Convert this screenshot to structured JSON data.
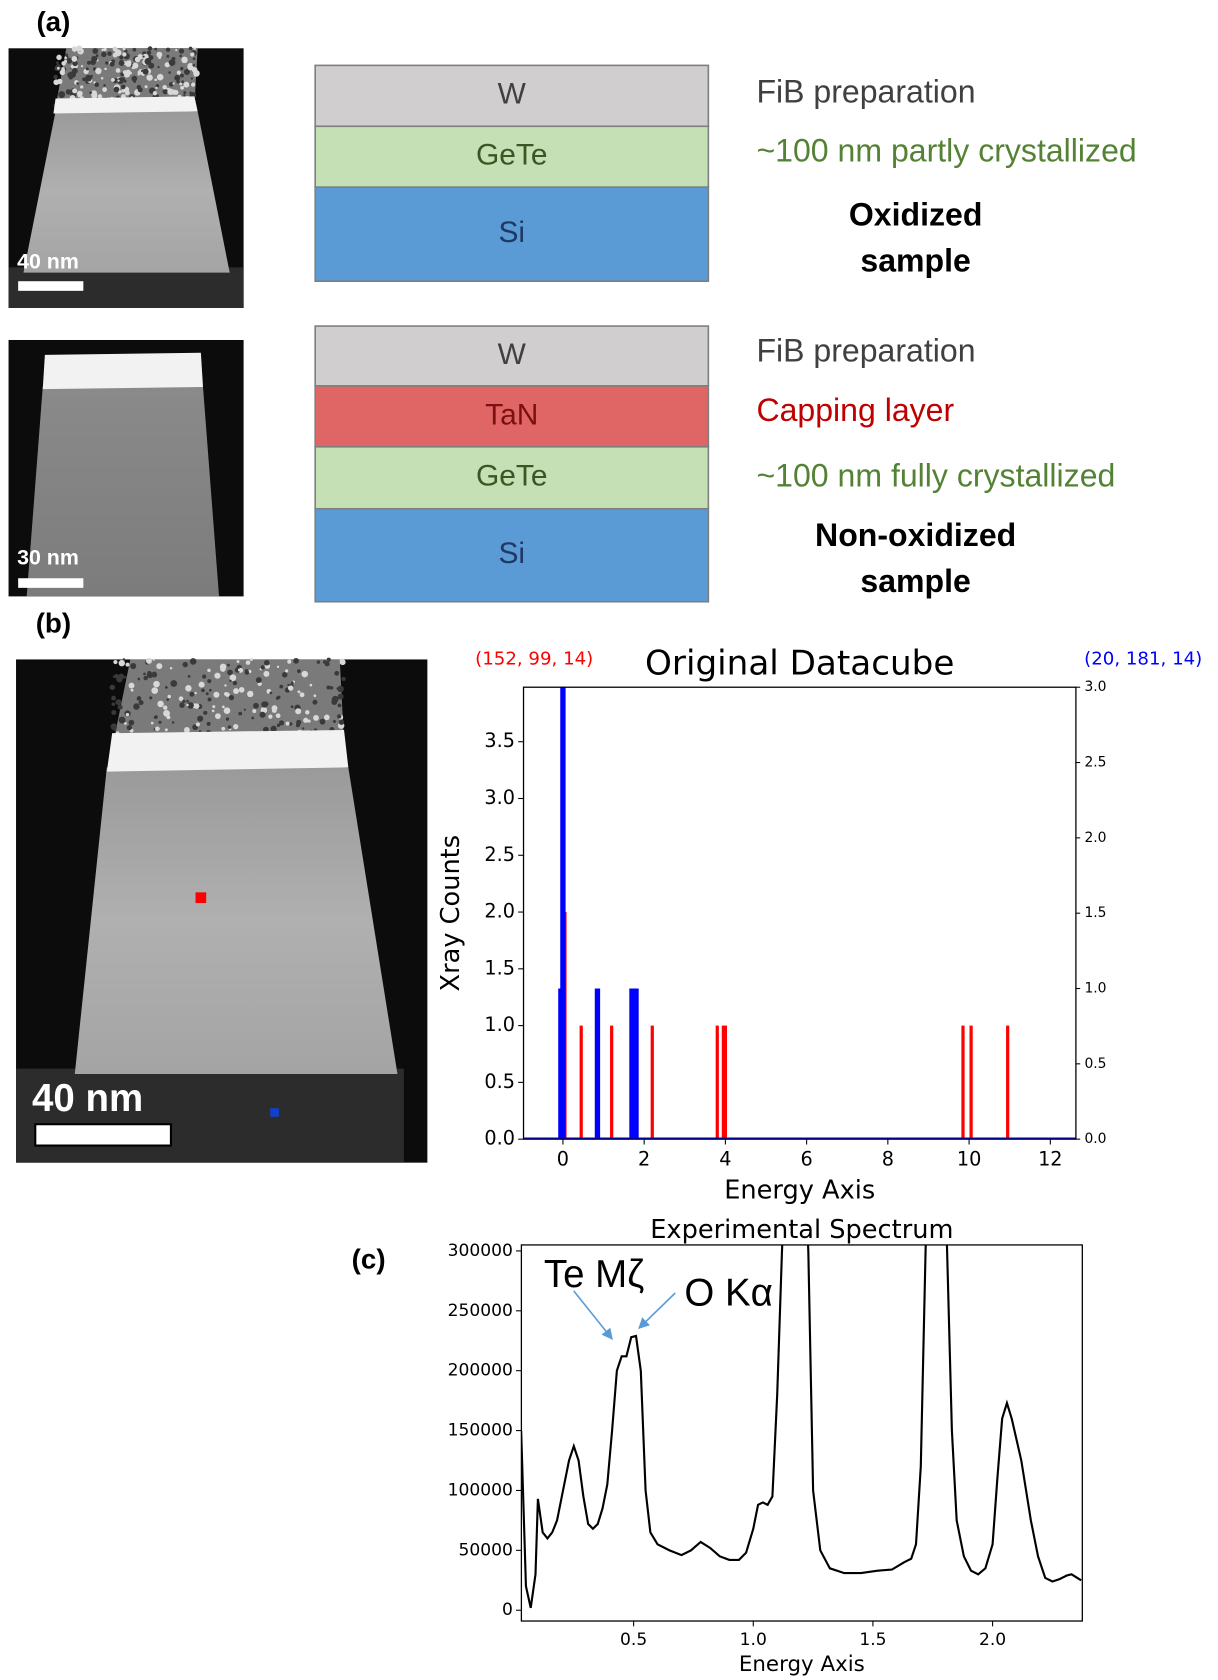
{
  "figure": {
    "panel_labels": [
      "(a)",
      "(b)",
      "(c)"
    ],
    "stacks": [
      {
        "layers": [
          "W",
          "GeTe",
          "Si"
        ],
        "notes": [
          "FiB preparation",
          "~100 nm partly crystallized"
        ],
        "sample": [
          "Oxidized",
          "sample"
        ],
        "scale_bar": "40 nm"
      },
      {
        "layers": [
          "W",
          "TaN",
          "GeTe",
          "Si"
        ],
        "notes": [
          "FiB preparation",
          "Capping layer",
          "~100 nm fully crystallized"
        ],
        "sample": [
          "Non-oxidized",
          "sample"
        ],
        "scale_bar": "30 nm"
      }
    ],
    "image_scale_bar": "40 nm"
  },
  "chart_data": [
    {
      "type": "bar",
      "title": "Original Datacube",
      "xlabel": "Energy Axis",
      "ylabel": "Xray Counts",
      "x": [
        -0.05,
        0,
        0.05,
        0.45,
        0.85,
        1.2,
        1.7,
        1.75,
        1.8,
        2.2,
        3.8,
        3.95,
        4.0,
        9.85,
        10.05,
        10.95
      ],
      "series": [
        {
          "name": "(152, 99, 14)",
          "color": "#ff0000",
          "values": [
            null,
            null,
            2,
            1,
            1,
            1,
            null,
            null,
            null,
            1,
            1,
            1,
            1,
            1,
            1,
            1
          ]
        },
        {
          "name": "(20, 181, 14)",
          "color": "#0000ff",
          "axis": "y2",
          "values": [
            1,
            3,
            null,
            null,
            1,
            null,
            1,
            1,
            1,
            null,
            null,
            null,
            null,
            null,
            null,
            null
          ]
        }
      ],
      "xlim": [
        -0.97,
        12.63
      ],
      "xticks": [
        0,
        2,
        4,
        6,
        8,
        10,
        12
      ],
      "ylim": [
        0,
        3.98
      ],
      "yticks": [
        {
          "value": 0,
          "label": "0.0"
        },
        0.5,
        {
          "value": 1,
          "label": "1.0"
        },
        1.5,
        {
          "value": 2,
          "label": "2.0"
        },
        2.5,
        {
          "value": 3,
          "label": "3.0"
        },
        3.5
      ],
      "y2lim": [
        0,
        3
      ],
      "y2ticks": [
        {
          "value": 0,
          "label": "0.0"
        },
        0.5,
        {
          "value": 1,
          "label": "1.0"
        },
        1.5,
        {
          "value": 2,
          "label": "2.0"
        },
        2.5,
        {
          "value": 3,
          "label": "3.0"
        }
      ]
    },
    {
      "type": "line",
      "title": "Experimental Spectrum",
      "xlabel": "Energy Axis",
      "annotations": [
        "Te Mζ",
        "O Kα"
      ],
      "x": [
        0.03,
        0.05,
        0.07,
        0.09,
        0.1,
        0.12,
        0.14,
        0.16,
        0.18,
        0.2,
        0.23,
        0.25,
        0.27,
        0.29,
        0.31,
        0.33,
        0.35,
        0.37,
        0.39,
        0.41,
        0.43,
        0.45,
        0.47,
        0.49,
        0.51,
        0.53,
        0.55,
        0.57,
        0.6,
        0.65,
        0.7,
        0.74,
        0.78,
        0.82,
        0.86,
        0.9,
        0.94,
        0.97,
        1.0,
        1.02,
        1.04,
        1.06,
        1.08,
        1.1,
        1.12,
        1.15,
        1.2,
        1.23,
        1.25,
        1.28,
        1.32,
        1.38,
        1.45,
        1.52,
        1.58,
        1.63,
        1.66,
        1.68,
        1.7,
        1.72,
        1.74,
        1.79,
        1.81,
        1.83,
        1.85,
        1.88,
        1.91,
        1.94,
        1.97,
        2.0,
        2.02,
        2.04,
        2.06,
        2.08,
        2.12,
        2.16,
        2.19,
        2.22,
        2.25,
        2.28,
        2.31,
        2.33,
        2.37
      ],
      "series": [
        {
          "color": "#000000",
          "values": [
            150000,
            20000,
            2000,
            30000,
            93000,
            65000,
            60000,
            65000,
            75000,
            95000,
            125000,
            137000,
            125000,
            95000,
            72000,
            68000,
            72000,
            85000,
            105000,
            150000,
            200000,
            212000,
            212000,
            228000,
            229000,
            200000,
            100000,
            65000,
            55000,
            50000,
            46000,
            50000,
            57000,
            52000,
            45000,
            42000,
            42000,
            48000,
            68000,
            88000,
            90000,
            88000,
            95000,
            180000,
            300000,
            450000,
            450000,
            300000,
            100000,
            50000,
            35000,
            31000,
            31000,
            33000,
            34000,
            40000,
            43000,
            55000,
            120000,
            300000,
            450000,
            450000,
            300000,
            150000,
            75000,
            45000,
            33000,
            30000,
            35000,
            55000,
            110000,
            160000,
            173000,
            160000,
            125000,
            75000,
            45000,
            27000,
            24000,
            26000,
            29000,
            30000,
            25000
          ]
        }
      ],
      "xlim": [
        0.031,
        2.375
      ],
      "xticks": [
        0.5,
        {
          "value": 1,
          "label": "1.0"
        },
        1.5,
        {
          "value": 2,
          "label": "2.0"
        }
      ],
      "ylim": [
        -9000,
        305000
      ],
      "yticks": [
        0,
        50000,
        100000,
        150000,
        200000,
        250000,
        300000
      ]
    }
  ]
}
